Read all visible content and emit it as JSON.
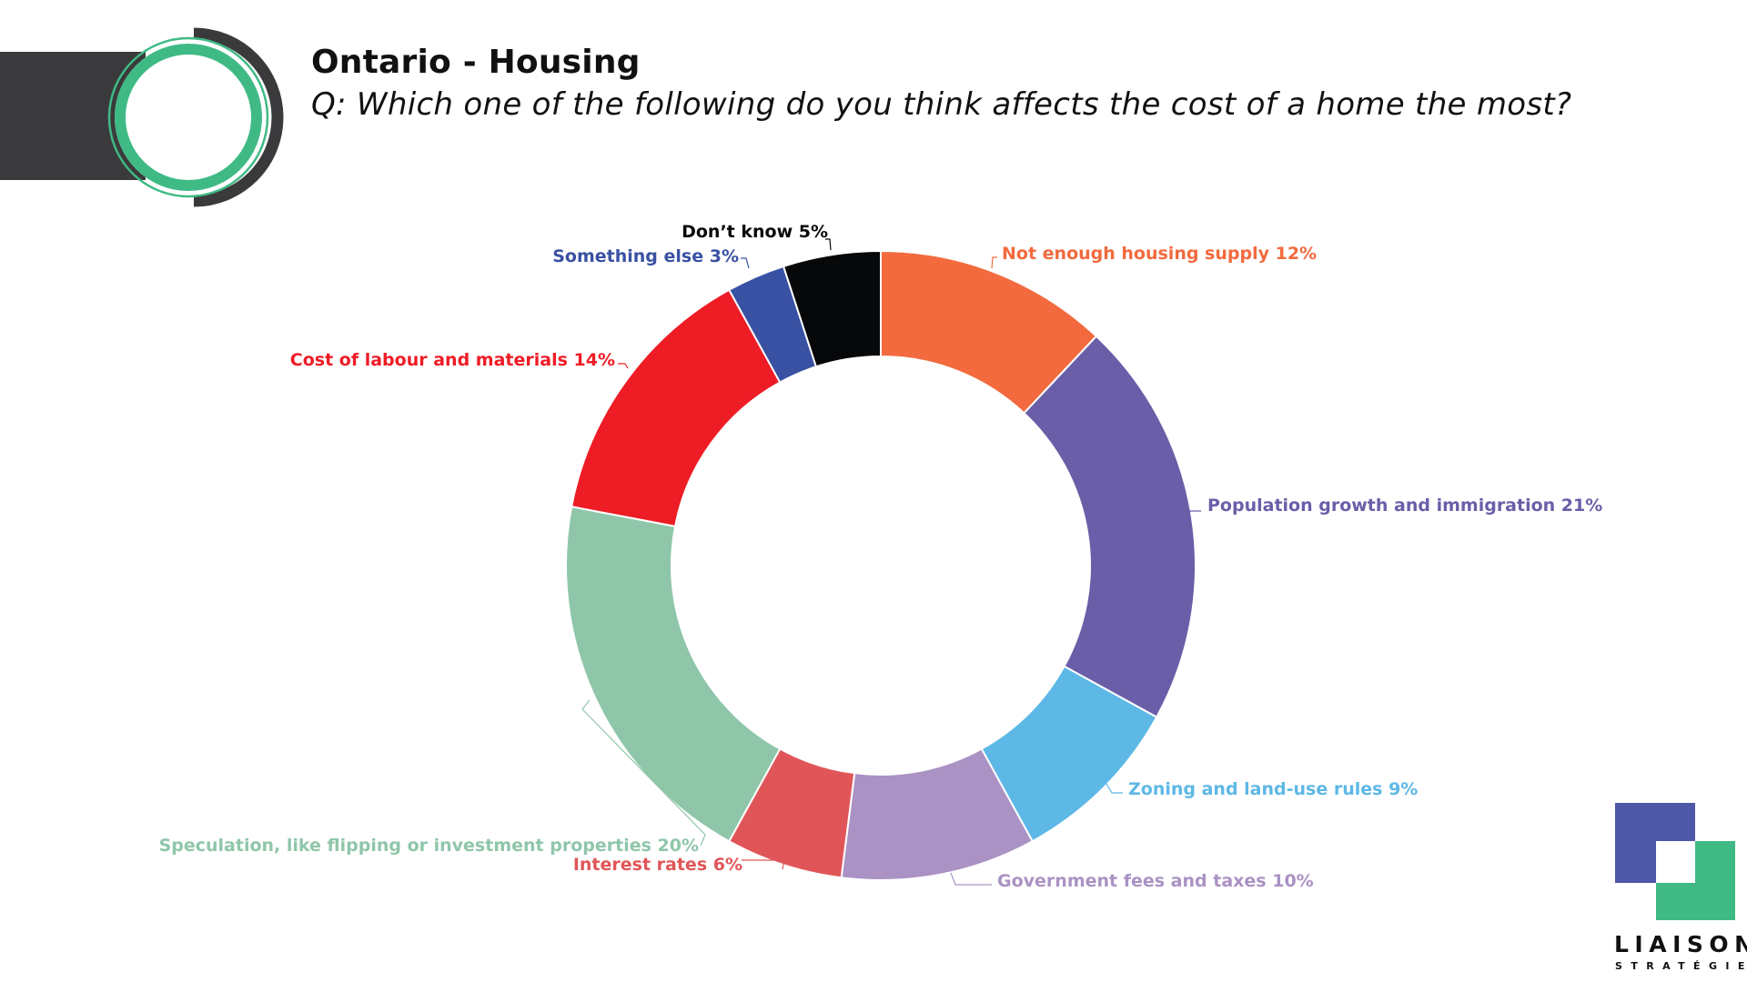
{
  "header": {
    "title": "Ontario - Housing",
    "subtitle": "Q: Which one of the following do you think affects the cost of a home the most?"
  },
  "brand": {
    "name": "LIAISON",
    "sub": "STRATÉGIES",
    "colors": {
      "blue": "#4f57a8",
      "green": "#3fba85",
      "dark": "#3a3a3c"
    }
  },
  "chart_data": {
    "type": "donut",
    "title": "Ontario - Housing",
    "subtitle": "Q: Which one of the following do you think affects the cost of a home the most?",
    "unit": "%",
    "legend": "none",
    "slices": [
      {
        "key": "not-enough-housing-supply",
        "label": "Not enough housing supply 12%",
        "value": 12,
        "color": "#f26a3d"
      },
      {
        "key": "population-growth-and-immigration",
        "label": "Population growth and immigration 21%",
        "value": 21,
        "color": "#6a5ea8"
      },
      {
        "key": "zoning-and-land-use-rules",
        "label": "Zoning and land-use rules 9%",
        "value": 9,
        "color": "#5db8e6"
      },
      {
        "key": "government-fees-and-taxes",
        "label": "Government fees and taxes 10%",
        "value": 10,
        "color": "#aa92c4"
      },
      {
        "key": "interest-rates",
        "label": "Interest rates 6%",
        "value": 6,
        "color": "#e05658"
      },
      {
        "key": "speculation",
        "label": "Speculation, like flipping or investment properties 20%",
        "value": 20,
        "color": "#8fc6a9"
      },
      {
        "key": "cost-of-labour-and-materials",
        "label": "Cost of labour and materials 14%",
        "value": 14,
        "color": "#ee1c25"
      },
      {
        "key": "something-else",
        "label": "Something else 3%",
        "value": 3,
        "color": "#3951a3"
      },
      {
        "key": "dont-know",
        "label": "Don’t know 5%",
        "value": 5,
        "color": "#07080a"
      }
    ]
  }
}
